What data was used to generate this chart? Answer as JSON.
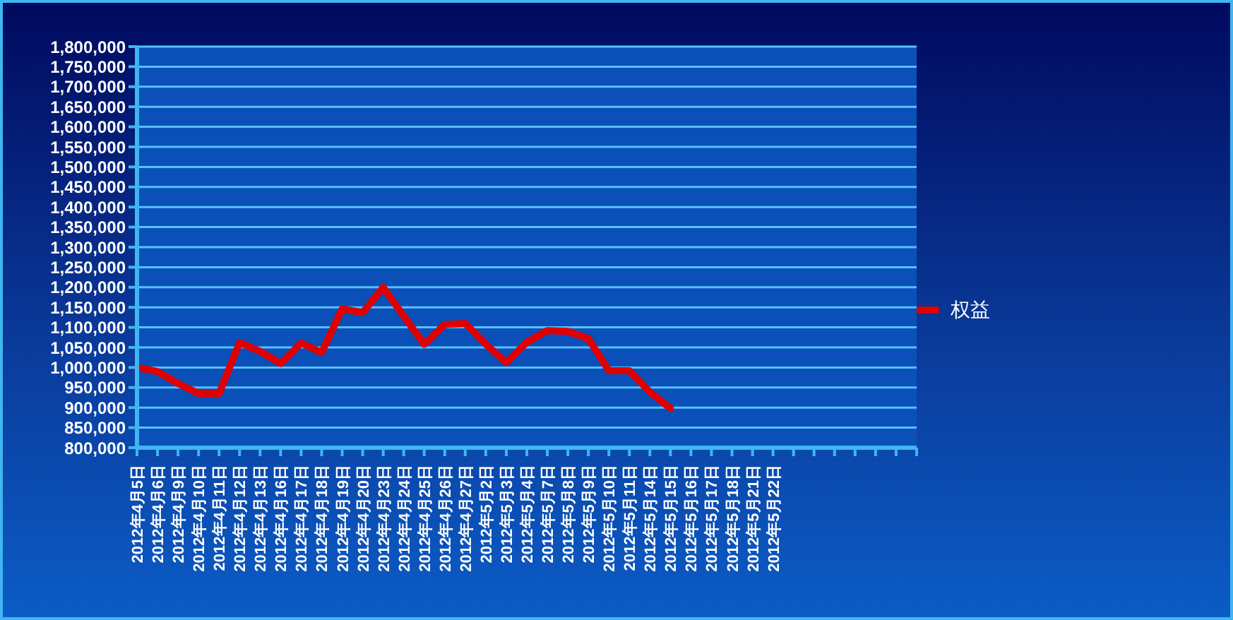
{
  "chart_data": {
    "type": "line",
    "categories": [
      "2012年4月5日",
      "2012年4月6日",
      "2012年4月9日",
      "2012年4月10日",
      "2012年4月11日",
      "2012年4月12日",
      "2012年4月13日",
      "2012年4月16日",
      "2012年4月17日",
      "2012年4月18日",
      "2012年4月19日",
      "2012年4月20日",
      "2012年4月23日",
      "2012年4月24日",
      "2012年4月25日",
      "2012年4月26日",
      "2012年4月27日",
      "2012年5月2日",
      "2012年5月3日",
      "2012年5月4日",
      "2012年5月7日",
      "2012年5月8日",
      "2012年5月9日",
      "2012年5月10日",
      "2012年5月11日",
      "2012年5月14日",
      "2012年5月15日",
      "2012年5月16日",
      "2012年5月17日",
      "2012年5月18日",
      "2012年5月21日",
      "2012年5月22日",
      null,
      null,
      null,
      null,
      null,
      null,
      null
    ],
    "series": [
      {
        "name": "权益",
        "color": "#e00000",
        "values": [
          1000000,
          990000,
          960000,
          935000,
          935000,
          1062000,
          1040000,
          1010000,
          1061000,
          1037000,
          1146000,
          1137000,
          1200000,
          1128000,
          1058000,
          1107000,
          1110000,
          1058000,
          1012000,
          1063000,
          1092000,
          1090000,
          1072000,
          992000,
          992000,
          939000,
          898000,
          null,
          null,
          null,
          null,
          null,
          null,
          null,
          null,
          null,
          null,
          null,
          null
        ]
      }
    ],
    "ylim": [
      800000,
      1800000
    ],
    "yticks": [
      {
        "value": 800000,
        "label": "800,000"
      },
      {
        "value": 850000,
        "label": "850,000"
      },
      {
        "value": 900000,
        "label": "900,000"
      },
      {
        "value": 950000,
        "label": "950,000"
      },
      {
        "value": 1000000,
        "label": "1,000,000"
      },
      {
        "value": 1050000,
        "label": "1,050,000"
      },
      {
        "value": 1100000,
        "label": "1,100,000"
      },
      {
        "value": 1150000,
        "label": "1,150,000"
      },
      {
        "value": 1200000,
        "label": "1,200,000"
      },
      {
        "value": 1250000,
        "label": "1,250,000"
      },
      {
        "value": 1300000,
        "label": "1,300,000"
      },
      {
        "value": 1350000,
        "label": "1,350,000"
      },
      {
        "value": 1400000,
        "label": "1,400,000"
      },
      {
        "value": 1450000,
        "label": "1,450,000"
      },
      {
        "value": 1500000,
        "label": "1,500,000"
      },
      {
        "value": 1550000,
        "label": "1,550,000"
      },
      {
        "value": 1600000,
        "label": "1,600,000"
      },
      {
        "value": 1650000,
        "label": "1,650,000"
      },
      {
        "value": 1700000,
        "label": "1,700,000"
      },
      {
        "value": 1750000,
        "label": "1,750,000"
      },
      {
        "value": 1800000,
        "label": "1,800,000"
      }
    ],
    "grid": "y",
    "legend": "right",
    "marker": "none",
    "line_style": "solid"
  }
}
